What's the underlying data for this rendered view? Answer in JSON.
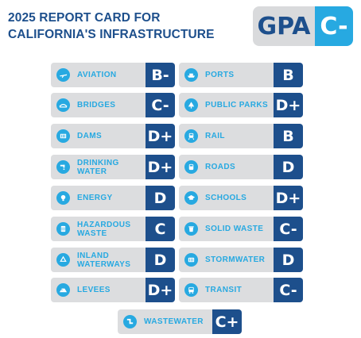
{
  "title_line1": "2025 REPORT CARD FOR",
  "title_line2": "CALIFORNIA'S INFRASTRUCTURE",
  "gpa": {
    "label": "GPA",
    "grade": "C-"
  },
  "colors": {
    "navy": "#1d4f8c",
    "accent": "#27a9e1",
    "card_bg": "#dcdddf"
  },
  "left": [
    {
      "line1": "AVIATION",
      "line2": "",
      "grade": "B-",
      "icon": "plane-icon"
    },
    {
      "line1": "BRIDGES",
      "line2": "",
      "grade": "C-",
      "icon": "bridge-icon"
    },
    {
      "line1": "DAMS",
      "line2": "",
      "grade": "D+",
      "icon": "dam-icon"
    },
    {
      "line1": "DRINKING",
      "line2": "WATER",
      "grade": "D+",
      "icon": "faucet-icon"
    },
    {
      "line1": "ENERGY",
      "line2": "",
      "grade": "D",
      "icon": "lightbulb-icon"
    },
    {
      "line1": "HAZARDOUS",
      "line2": "WASTE",
      "grade": "C",
      "icon": "barrel-icon"
    },
    {
      "line1": "INLAND",
      "line2": "WATERWAYS",
      "grade": "D",
      "icon": "recycle-icon"
    },
    {
      "line1": "LEVEES",
      "line2": "",
      "grade": "D+",
      "icon": "levee-icon"
    }
  ],
  "right": [
    {
      "line1": "PORTS",
      "line2": "",
      "grade": "B",
      "icon": "ship-icon"
    },
    {
      "line1": "PUBLIC PARKS",
      "line2": "",
      "grade": "D+",
      "icon": "park-icon"
    },
    {
      "line1": "RAIL",
      "line2": "",
      "grade": "B",
      "icon": "train-icon"
    },
    {
      "line1": "ROADS",
      "line2": "",
      "grade": "D",
      "icon": "car-icon"
    },
    {
      "line1": "SCHOOLS",
      "line2": "",
      "grade": "D+",
      "icon": "school-icon"
    },
    {
      "line1": "SOLID WASTE",
      "line2": "",
      "grade": "C-",
      "icon": "trash-icon"
    },
    {
      "line1": "STORMWATER",
      "line2": "",
      "grade": "D",
      "icon": "drain-icon"
    },
    {
      "line1": "TRANSIT",
      "line2": "",
      "grade": "C-",
      "icon": "bus-icon"
    }
  ],
  "bottom": {
    "line1": "WASTEWATER",
    "line2": "",
    "grade": "C+",
    "icon": "pipe-icon"
  }
}
